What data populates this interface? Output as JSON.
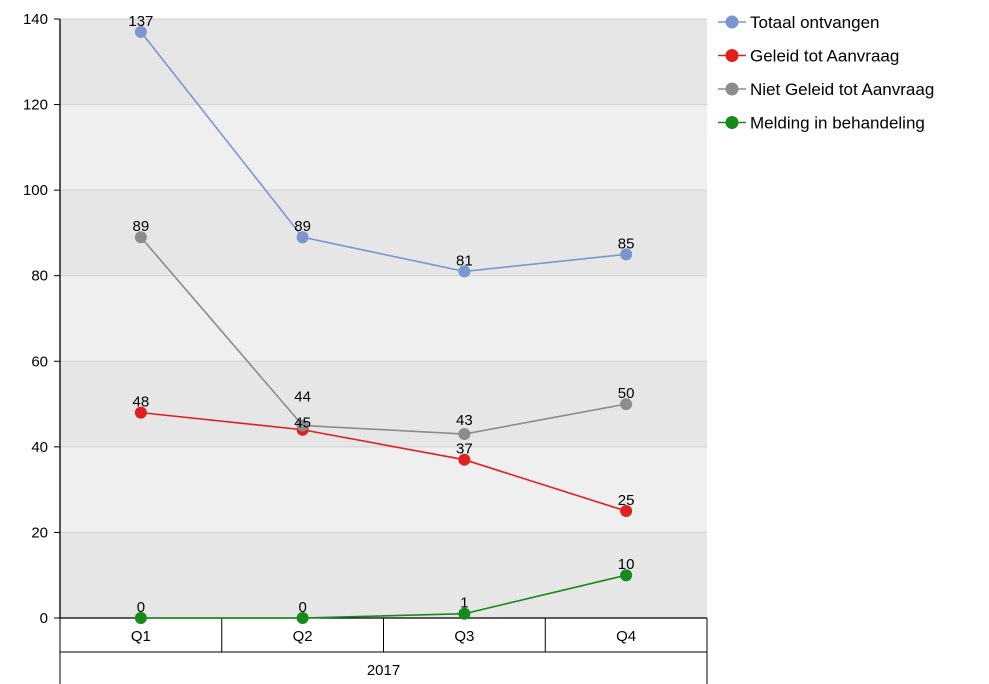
{
  "chart_data": {
    "type": "line",
    "title": "",
    "xlabel": "",
    "ylabel": "",
    "ylim": [
      0,
      140
    ],
    "yticks": [
      0,
      20,
      40,
      60,
      80,
      100,
      120,
      140
    ],
    "categories": [
      "Q1",
      "Q2",
      "Q3",
      "Q4"
    ],
    "group_label": "2017",
    "grid": true,
    "legend_position": "top-right",
    "series": [
      {
        "name": "Totaal ontvangen",
        "color": "#7b96cf",
        "values": [
          137,
          89,
          81,
          85
        ]
      },
      {
        "name": "Geleid tot Aanvraag",
        "color": "#e02020",
        "values": [
          48,
          44,
          37,
          25
        ]
      },
      {
        "name": "Niet Geleid tot Aanvraag",
        "color": "#8c8c8c",
        "values": [
          89,
          45,
          43,
          50
        ]
      },
      {
        "name": "Melding in behandeling",
        "color": "#168a1a",
        "values": [
          0,
          0,
          1,
          10
        ]
      }
    ]
  }
}
